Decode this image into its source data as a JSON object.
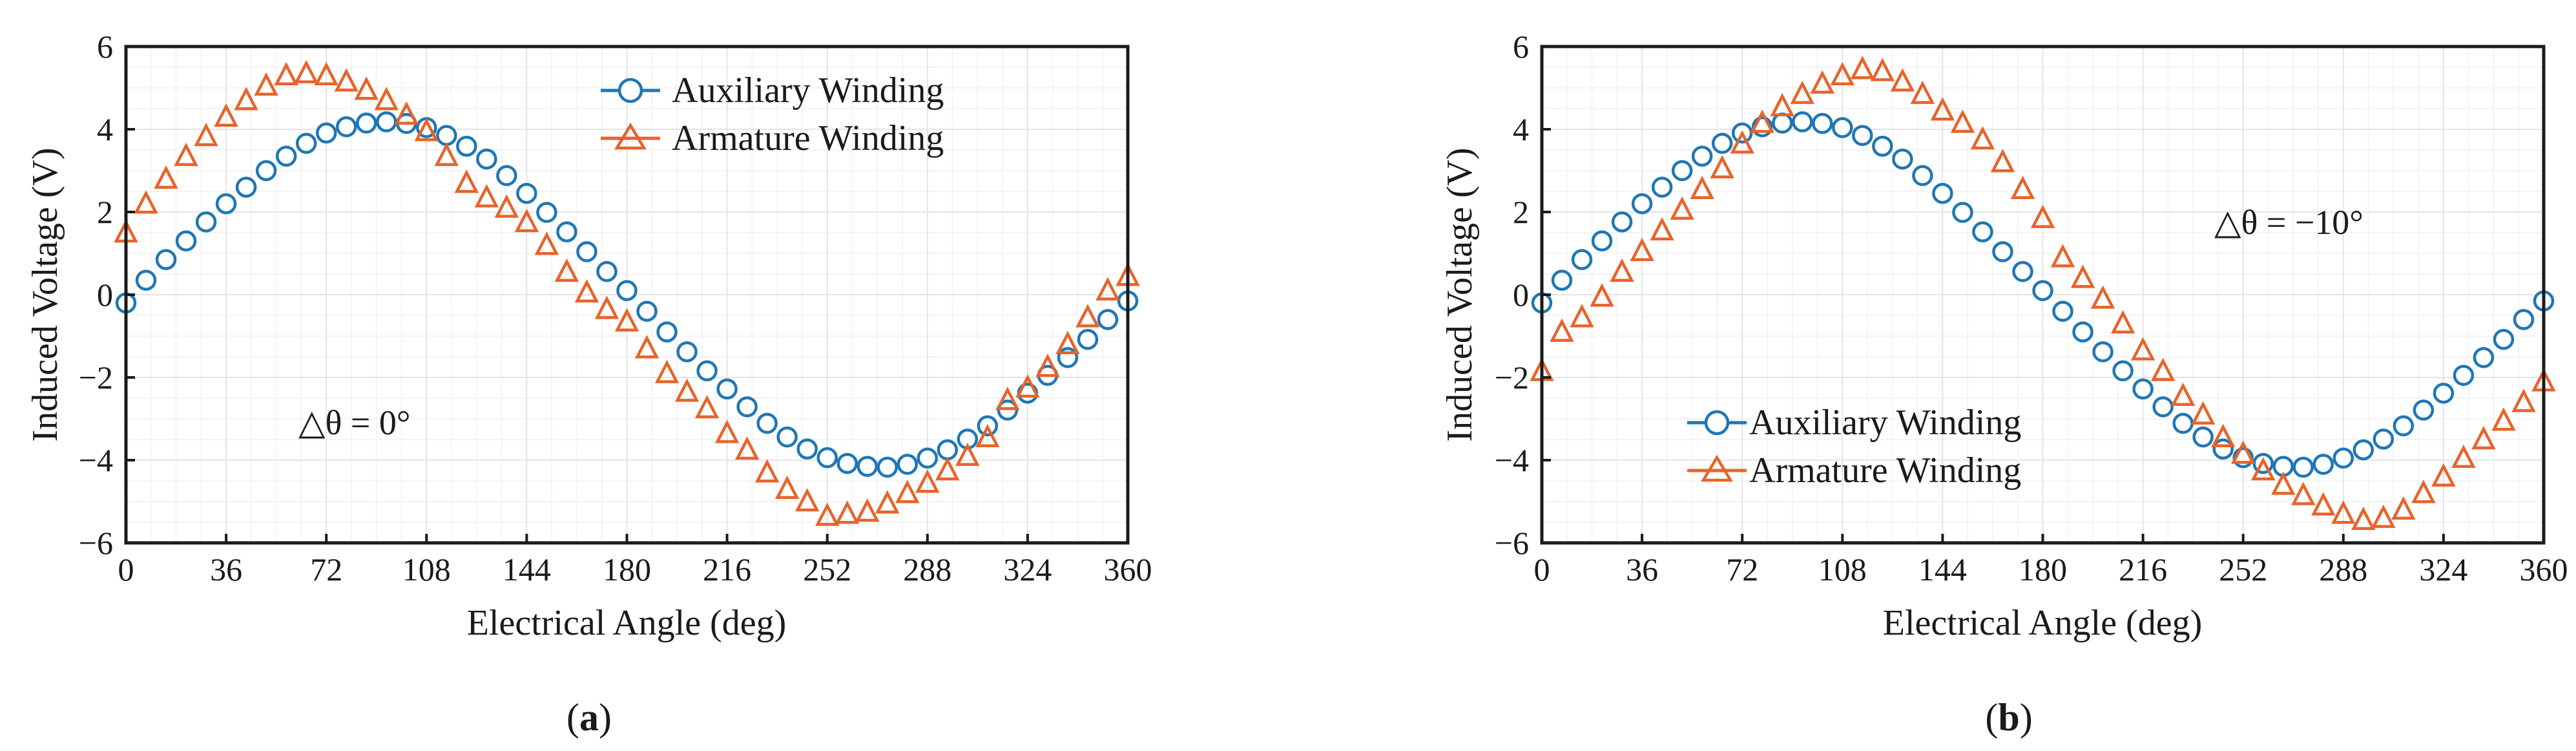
{
  "colors": {
    "auxiliary": "#1f77b4",
    "armature": "#e8632a"
  },
  "chart_data": [
    {
      "panel": "a",
      "type": "scatter",
      "caption_letter": "a",
      "xlabel": "Electrical Angle (deg)",
      "ylabel": "Induced Voltage (V)",
      "xlim": [
        0,
        360
      ],
      "ylim": [
        -6,
        6
      ],
      "xticks": [
        "0",
        "36",
        "72",
        "108",
        "144",
        "180",
        "216",
        "252",
        "288",
        "324",
        "360"
      ],
      "yticks": [
        "6",
        "4",
        "2",
        "0",
        "−2",
        "−4",
        "−6"
      ],
      "annotation": "△θ = 0°",
      "legend_position": "top-right",
      "legend": [
        "Auxiliary Winding",
        "Armature Winding"
      ],
      "series": [
        {
          "name": "Auxiliary Winding",
          "marker": "circle",
          "x": [
            0,
            7.2,
            14.4,
            21.6,
            28.8,
            36,
            43.2,
            50.4,
            57.6,
            64.8,
            72,
            79.2,
            86.4,
            93.6,
            100.8,
            108,
            115.2,
            122.4,
            129.6,
            136.8,
            144,
            151.2,
            158.4,
            165.6,
            172.8,
            180,
            187.2,
            194.4,
            201.6,
            208.8,
            216,
            223.2,
            230.4,
            237.6,
            244.8,
            252,
            259.2,
            266.4,
            273.6,
            280.8,
            288,
            295.2,
            302.4,
            309.6,
            316.8,
            324,
            331.2,
            338.4,
            345.6,
            352.8,
            360
          ],
          "y": [
            -0.2,
            0.35,
            0.85,
            1.3,
            1.76,
            2.2,
            2.6,
            3,
            3.35,
            3.66,
            3.91,
            4.06,
            4.15,
            4.18,
            4.14,
            4.04,
            3.85,
            3.59,
            3.28,
            2.88,
            2.45,
            1.99,
            1.52,
            1.04,
            0.56,
            0.1,
            -0.4,
            -0.9,
            -1.38,
            -1.84,
            -2.28,
            -2.71,
            -3.11,
            -3.44,
            -3.73,
            -3.94,
            -4.08,
            -4.15,
            -4.17,
            -4.1,
            -3.95,
            -3.75,
            -3.49,
            -3.17,
            -2.79,
            -2.38,
            -1.95,
            -1.52,
            -1.08,
            -0.6,
            -0.15
          ]
        },
        {
          "name": "Armature Winding",
          "marker": "triangle",
          "x": [
            0,
            7.2,
            14.4,
            21.6,
            28.8,
            36,
            43.2,
            50.4,
            57.6,
            64.8,
            72,
            79.2,
            86.4,
            93.6,
            100.8,
            108,
            115.2,
            122.4,
            129.6,
            136.8,
            144,
            151.2,
            158.4,
            165.6,
            172.8,
            180,
            187.2,
            194.4,
            201.6,
            208.8,
            216,
            223.2,
            230.4,
            237.6,
            244.8,
            252,
            259.2,
            266.4,
            273.6,
            280.8,
            288,
            295.2,
            302.4,
            309.6,
            316.8,
            324,
            331.2,
            338.4,
            345.6,
            352.8,
            360
          ],
          "y": [
            1.5,
            2.2,
            2.8,
            3.35,
            3.83,
            4.3,
            4.7,
            5.05,
            5.3,
            5.35,
            5.3,
            5.15,
            4.95,
            4.7,
            4.35,
            3.95,
            3.35,
            2.7,
            2.35,
            2.1,
            1.75,
            1.2,
            0.55,
            0.05,
            -0.35,
            -0.65,
            -1.3,
            -1.9,
            -2.35,
            -2.75,
            -3.35,
            -3.75,
            -4.3,
            -4.7,
            -5.0,
            -5.35,
            -5.3,
            -5.25,
            -5.05,
            -4.8,
            -4.55,
            -4.25,
            -3.9,
            -3.45,
            -2.55,
            -2.25,
            -1.75,
            -1.2,
            -0.55,
            0.1,
            0.45
          ]
        }
      ]
    },
    {
      "panel": "b",
      "type": "scatter",
      "caption_letter": "b",
      "xlabel": "Electrical Angle (deg)",
      "ylabel": "Induced Voltage (V)",
      "xlim": [
        0,
        360
      ],
      "ylim": [
        -6,
        6
      ],
      "xticks": [
        "0",
        "36",
        "72",
        "108",
        "144",
        "180",
        "216",
        "252",
        "288",
        "324",
        "360"
      ],
      "yticks": [
        "6",
        "4",
        "2",
        "0",
        "−2",
        "−4",
        "−6"
      ],
      "annotation": "△θ = −10°",
      "legend_position": "bottom-left",
      "legend": [
        "Auxiliary Winding",
        "Armature Winding"
      ],
      "series": [
        {
          "name": "Auxiliary Winding",
          "marker": "circle",
          "x": [
            0,
            7.2,
            14.4,
            21.6,
            28.8,
            36,
            43.2,
            50.4,
            57.6,
            64.8,
            72,
            79.2,
            86.4,
            93.6,
            100.8,
            108,
            115.2,
            122.4,
            129.6,
            136.8,
            144,
            151.2,
            158.4,
            165.6,
            172.8,
            180,
            187.2,
            194.4,
            201.6,
            208.8,
            216,
            223.2,
            230.4,
            237.6,
            244.8,
            252,
            259.2,
            266.4,
            273.6,
            280.8,
            288,
            295.2,
            302.4,
            309.6,
            316.8,
            324,
            331.2,
            338.4,
            345.6,
            352.8,
            360
          ],
          "y": [
            -0.2,
            0.35,
            0.85,
            1.3,
            1.76,
            2.2,
            2.6,
            3,
            3.35,
            3.66,
            3.91,
            4.06,
            4.15,
            4.18,
            4.14,
            4.04,
            3.85,
            3.59,
            3.28,
            2.88,
            2.45,
            1.99,
            1.52,
            1.04,
            0.56,
            0.1,
            -0.4,
            -0.9,
            -1.38,
            -1.84,
            -2.28,
            -2.71,
            -3.11,
            -3.44,
            -3.73,
            -3.94,
            -4.08,
            -4.15,
            -4.17,
            -4.1,
            -3.95,
            -3.75,
            -3.49,
            -3.17,
            -2.79,
            -2.38,
            -1.95,
            -1.52,
            -1.08,
            -0.6,
            -0.15
          ]
        },
        {
          "name": "Armature Winding",
          "marker": "triangle",
          "x": [
            0,
            7.2,
            14.4,
            21.6,
            28.8,
            36,
            43.2,
            50.4,
            57.6,
            64.8,
            72,
            79.2,
            86.4,
            93.6,
            100.8,
            108,
            115.2,
            122.4,
            129.6,
            136.8,
            144,
            151.2,
            158.4,
            165.6,
            172.8,
            180,
            187.2,
            194.4,
            201.6,
            208.8,
            216,
            223.2,
            230.4,
            237.6,
            244.8,
            252,
            259.2,
            266.4,
            273.6,
            280.8,
            288,
            295.2,
            302.4,
            309.6,
            316.8,
            324,
            331.2,
            338.4,
            345.6,
            352.8,
            360
          ],
          "y": [
            -1.85,
            -0.9,
            -0.55,
            -0.05,
            0.55,
            1.05,
            1.55,
            2.05,
            2.55,
            3.05,
            3.65,
            4.15,
            4.55,
            4.85,
            5.1,
            5.3,
            5.45,
            5.4,
            5.15,
            4.85,
            4.45,
            4.15,
            3.75,
            3.2,
            2.55,
            1.85,
            0.9,
            0.4,
            -0.1,
            -0.7,
            -1.35,
            -1.85,
            -2.45,
            -2.9,
            -3.45,
            -3.85,
            -4.25,
            -4.6,
            -4.85,
            -5.1,
            -5.3,
            -5.45,
            -5.4,
            -5.2,
            -4.8,
            -4.4,
            -3.95,
            -3.5,
            -3.05,
            -2.6,
            -2.1
          ]
        }
      ]
    }
  ]
}
